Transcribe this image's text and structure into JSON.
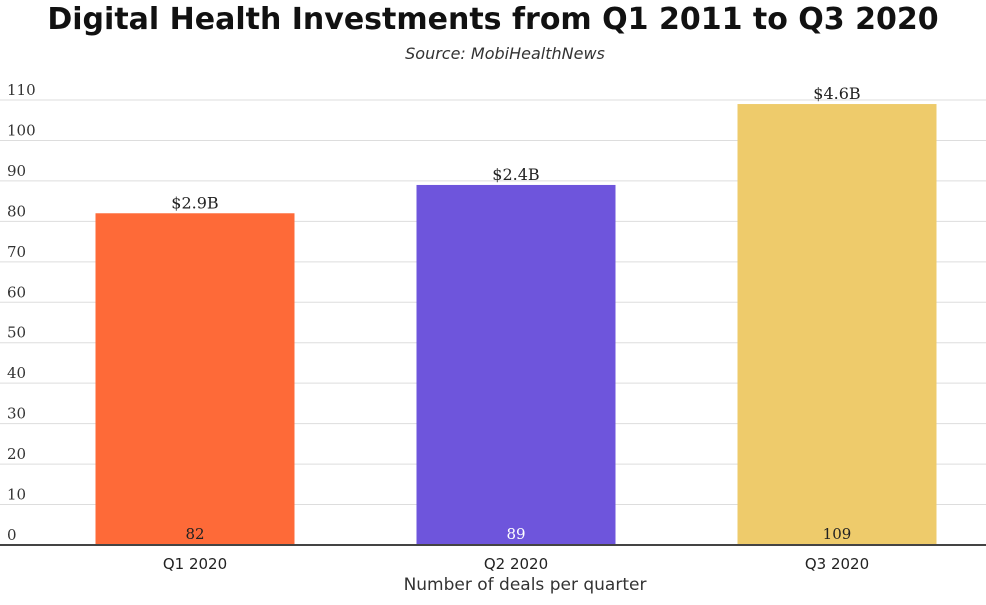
{
  "chart_data": {
    "type": "bar",
    "title": "Digital Health Investments from Q1 2011 to Q3 2020",
    "subtitle": "Source: MobiHealthNews",
    "xlabel": "Number of deals per quarter",
    "ylabel": "",
    "categories": [
      "Q1 2020",
      "Q2 2020",
      "Q3 2020"
    ],
    "values": [
      82,
      89,
      109
    ],
    "value_labels": [
      "$2.9B",
      "$2.4B",
      "$4.6B"
    ],
    "count_labels": [
      "82",
      "89",
      "109"
    ],
    "colors": [
      "#fe6a38",
      "#6e55dc",
      "#eecb6b"
    ],
    "ylim": [
      0,
      110
    ],
    "yticks": [
      0,
      10,
      20,
      30,
      40,
      50,
      60,
      70,
      80,
      90,
      100,
      110
    ],
    "grid": true,
    "legend": "none"
  }
}
